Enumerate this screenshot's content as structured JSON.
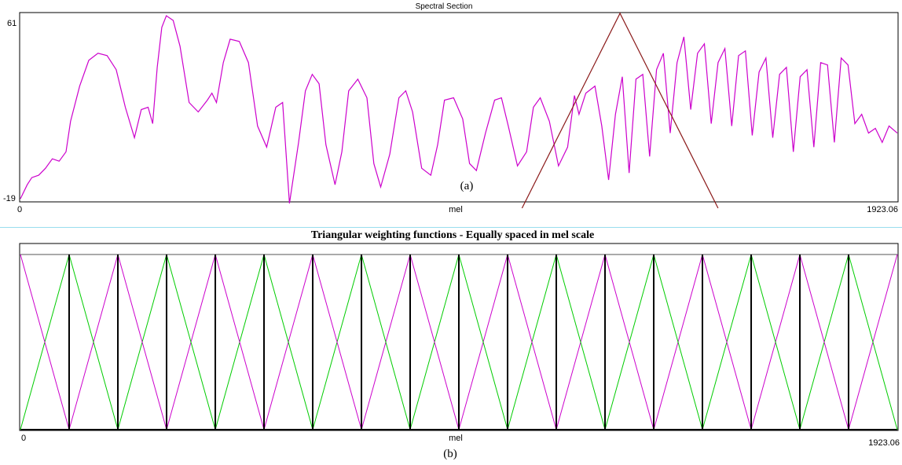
{
  "chart_data": [
    {
      "type": "line",
      "title": "Spectral Section",
      "xlabel": "mel",
      "ylabel": "",
      "xlim": [
        0,
        1923.06
      ],
      "ylim": [
        -19,
        61
      ],
      "x_tick_labels": [
        "0",
        "1923.06"
      ],
      "y_tick_labels": [
        "61",
        "-19"
      ],
      "annotation": "(a)",
      "grid": false,
      "colors": {
        "spectrum": "#cc00cc",
        "triangle": "#8b1a1a",
        "frame": "#000000"
      },
      "series": [
        {
          "x": [
            0,
            15,
            25,
            40,
            55,
            70,
            85,
            100,
            110,
            130,
            150,
            170,
            190,
            210,
            230,
            250,
            265,
            280,
            290,
            300,
            310,
            320,
            335,
            350,
            370,
            390,
            410,
            420,
            430,
            445,
            460,
            480,
            500,
            520,
            540,
            560,
            575,
            590,
            610,
            625,
            640,
            655,
            670,
            690,
            705,
            720,
            740,
            760,
            775,
            790,
            810,
            830,
            845,
            860,
            880,
            900,
            915,
            930,
            950,
            970,
            985,
            1000,
            1020,
            1040,
            1055,
            1070,
            1090,
            1110,
            1125,
            1140,
            1160,
            1180,
            1200,
            1215,
            1225,
            1240,
            1260,
            1275,
            1290,
            1305,
            1320,
            1335,
            1350,
            1365,
            1380,
            1395,
            1410,
            1425,
            1440,
            1455,
            1470,
            1485,
            1500,
            1515,
            1530,
            1545,
            1560,
            1575,
            1590,
            1605,
            1620,
            1635,
            1650,
            1665,
            1680,
            1695,
            1710,
            1725,
            1740,
            1755,
            1770,
            1785,
            1800,
            1815,
            1830,
            1845,
            1860,
            1875,
            1890,
            1905,
            1923.06
          ],
          "y": [
            -18,
            -12,
            -9,
            -8,
            -5,
            -1,
            -2,
            2,
            15,
            30,
            41,
            44,
            43,
            37,
            21,
            8,
            20,
            21,
            14,
            38,
            55,
            60,
            58,
            47,
            23,
            19,
            24,
            27,
            23,
            40,
            50,
            49,
            40,
            13,
            4,
            21,
            23,
            -20,
            6,
            28,
            35,
            31,
            5,
            -12,
            2,
            28,
            33,
            25,
            -3,
            -13,
            1,
            25,
            28,
            19,
            -5,
            -8,
            5,
            24,
            25,
            16,
            -3,
            -6,
            10,
            24,
            25,
            13,
            -4,
            2,
            21,
            25,
            15,
            -4,
            4,
            26,
            18,
            27,
            30,
            13,
            -10,
            18,
            34,
            -7,
            33,
            35,
            0,
            37,
            44,
            10,
            40,
            51,
            20,
            44,
            48,
            14,
            40,
            46,
            13,
            43,
            45,
            9,
            36,
            42,
            8,
            35,
            38,
            2,
            34,
            37,
            4,
            40,
            39,
            6,
            42,
            39,
            14,
            18,
            10,
            12,
            6,
            13,
            10
          ]
        },
        {
          "name": "",
          "x": [
            1100,
            1315,
            1530
          ],
          "y": [
            -22,
            61,
            -22
          ]
        }
      ]
    },
    {
      "type": "line",
      "title": "Triangular weighting functions - Equally spaced in mel scale",
      "xlabel": "mel",
      "ylabel": "",
      "xlim": [
        0,
        1923.06
      ],
      "ylim": [
        0,
        1
      ],
      "x_tick_labels": [
        "0",
        "1923.06"
      ],
      "annotation": "(b)",
      "grid": false,
      "colors": {
        "green": "#00cc00",
        "magenta": "#cc00cc",
        "frame": "#000000"
      },
      "triangle_centers": [
        0,
        106.8,
        213.7,
        320.5,
        427.4,
        534.2,
        641.0,
        747.9,
        854.7,
        961.5,
        1068.4,
        1175.2,
        1282.1,
        1388.9,
        1495.7,
        1602.6,
        1709.4,
        1816.2,
        1923.06
      ],
      "triangle_peak": 1
    }
  ],
  "labels": {
    "top_title": "Spectral Section",
    "top_y_max": "61",
    "top_y_min": "-19",
    "top_x_min": "0",
    "top_x_max": "1923.06",
    "top_xlabel": "mel",
    "top_caption": "(a)",
    "bot_title": "Triangular weighting functions - Equally spaced in mel scale",
    "bot_x_min": "0",
    "bot_x_max": "1923.06",
    "bot_xlabel": "mel",
    "bot_caption": "(b)"
  }
}
